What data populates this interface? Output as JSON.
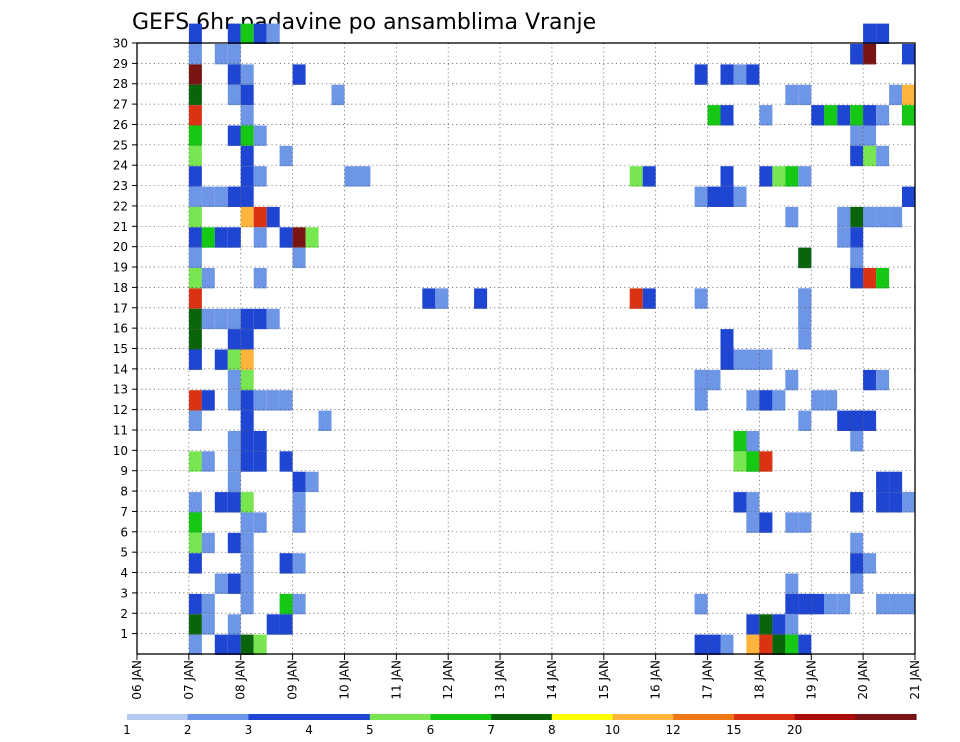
{
  "chart_data": {
    "type": "heatmap",
    "title": "GEFS 6hr padavine po ansamblima Vranje",
    "xlabel": "",
    "ylabel": "",
    "x_range": [
      "06 JAN",
      "21 JAN"
    ],
    "x_tick_labels": [
      "06 JAN",
      "07 JAN",
      "08 JAN",
      "09 JAN",
      "10 JAN",
      "11 JAN",
      "12 JAN",
      "13 JAN",
      "14 JAN",
      "15 JAN",
      "16 JAN",
      "17 JAN",
      "18 JAN",
      "19 JAN",
      "20 JAN",
      "21 JAN"
    ],
    "y_tick_labels": [
      "1",
      "2",
      "3",
      "4",
      "5",
      "6",
      "7",
      "8",
      "9",
      "10",
      "11",
      "12",
      "13",
      "14",
      "15",
      "16",
      "17",
      "18",
      "19",
      "20",
      "21",
      "22",
      "23",
      "24",
      "25",
      "26",
      "27",
      "28",
      "29",
      "30"
    ],
    "y_range": [
      0,
      30
    ],
    "grid": true,
    "grid_style": "dotted",
    "time_step_hours": 6,
    "legend": {
      "placement": "bottom",
      "labels": [
        "1",
        "2",
        "3",
        "4",
        "5",
        "6",
        "7",
        "8",
        "10",
        "12",
        "15",
        "20"
      ],
      "colors": [
        "#b4c8f0",
        "#6e96e6",
        "#1e46d2",
        "#1e46d2",
        "#78e650",
        "#14c814",
        "#0a640a",
        "#ffff00",
        "#ffb43c",
        "#f07814",
        "#dc3214",
        "#aa0a0a",
        "#781414"
      ]
    },
    "cells": [
      [
        30,
        "07 JAN",
        0,
        3
      ],
      [
        30,
        "08 JAN",
        -1,
        3
      ],
      [
        30,
        "08 JAN",
        0,
        5
      ],
      [
        30,
        "08 JAN",
        1,
        2
      ],
      [
        30,
        "08 JAN",
        2,
        1
      ],
      [
        30,
        "20 JAN",
        0,
        3
      ],
      [
        30,
        "20 JAN",
        1,
        2
      ],
      [
        29,
        "07 JAN",
        0,
        1
      ],
      [
        29,
        "08 JAN",
        -1,
        1
      ],
      [
        29,
        "08 JAN",
        -2,
        1
      ],
      [
        29,
        "19 JAN",
        3,
        1
      ],
      [
        29,
        "20 JAN",
        -1,
        3
      ],
      [
        29,
        "20 JAN",
        0,
        12
      ],
      [
        29,
        "21 JAN",
        -1,
        2
      ],
      [
        28,
        "07 JAN",
        0,
        12
      ],
      [
        28,
        "08 JAN",
        -1,
        3
      ],
      [
        28,
        "08 JAN",
        0,
        1
      ],
      [
        28,
        "09 JAN",
        0,
        2
      ],
      [
        28,
        "17 JAN",
        -1,
        2
      ],
      [
        28,
        "17 JAN",
        1,
        3
      ],
      [
        28,
        "18 JAN",
        -2,
        1
      ],
      [
        28,
        "18 JAN",
        -1,
        2
      ],
      [
        27,
        "07 JAN",
        0,
        6
      ],
      [
        27,
        "08 JAN",
        -1,
        1
      ],
      [
        27,
        "08 JAN",
        0,
        2
      ],
      [
        27,
        "10 JAN",
        -1,
        1
      ],
      [
        27,
        "18 JAN",
        2,
        1
      ],
      [
        27,
        "18 JAN",
        3,
        1
      ],
      [
        27,
        "20 JAN",
        2,
        1
      ],
      [
        27,
        "20 JAN",
        3,
        8
      ],
      [
        26,
        "07 JAN",
        0,
        10
      ],
      [
        26,
        "08 JAN",
        0,
        1
      ],
      [
        26,
        "17 JAN",
        0,
        5
      ],
      [
        26,
        "17 JAN",
        1,
        2
      ],
      [
        26,
        "18 JAN",
        0,
        1
      ],
      [
        26,
        "19 JAN",
        0,
        2
      ],
      [
        26,
        "19 JAN",
        1,
        5
      ],
      [
        26,
        "19 JAN",
        2,
        2
      ],
      [
        26,
        "20 JAN",
        -1,
        5
      ],
      [
        26,
        "20 JAN",
        0,
        2
      ],
      [
        26,
        "20 JAN",
        1,
        1
      ],
      [
        26,
        "21 JAN",
        -1,
        5
      ],
      [
        25,
        "07 JAN",
        0,
        5
      ],
      [
        25,
        "08 JAN",
        -1,
        2
      ],
      [
        25,
        "08 JAN",
        0,
        5
      ],
      [
        25,
        "08 JAN",
        1,
        1
      ],
      [
        25,
        "20 JAN",
        -1,
        1
      ],
      [
        25,
        "20 JAN",
        0,
        1
      ],
      [
        24,
        "07 JAN",
        0,
        4
      ],
      [
        24,
        "08 JAN",
        0,
        2
      ],
      [
        24,
        "09 JAN",
        -1,
        1
      ],
      [
        24,
        "20 JAN",
        -1,
        2
      ],
      [
        24,
        "20 JAN",
        0,
        4
      ],
      [
        24,
        "20 JAN",
        1,
        1
      ],
      [
        23,
        "07 JAN",
        0,
        3
      ],
      [
        23,
        "08 JAN",
        0,
        3
      ],
      [
        23,
        "08 JAN",
        1,
        1
      ],
      [
        23,
        "10 JAN",
        0,
        1
      ],
      [
        23,
        "10 JAN",
        1,
        1
      ],
      [
        23,
        "15 JAN",
        2,
        4
      ],
      [
        23,
        "16 JAN",
        -1,
        2
      ],
      [
        23,
        "17 JAN",
        1,
        3
      ],
      [
        23,
        "18 JAN",
        0,
        2
      ],
      [
        23,
        "18 JAN",
        1,
        4
      ],
      [
        23,
        "18 JAN",
        2,
        5
      ],
      [
        23,
        "18 JAN",
        3,
        1
      ],
      [
        22,
        "07 JAN",
        0,
        1
      ],
      [
        22,
        "07 JAN",
        1,
        1
      ],
      [
        22,
        "07 JAN",
        2,
        1
      ],
      [
        22,
        "08 JAN",
        -1,
        3
      ],
      [
        22,
        "08 JAN",
        0,
        2
      ],
      [
        22,
        "17 JAN",
        -1,
        1
      ],
      [
        22,
        "17 JAN",
        0,
        2
      ],
      [
        22,
        "17 JAN",
        1,
        2
      ],
      [
        22,
        "17 JAN",
        2,
        1
      ],
      [
        22,
        "21 JAN",
        -1,
        2
      ],
      [
        21,
        "07 JAN",
        0,
        4
      ],
      [
        21,
        "08 JAN",
        0,
        8
      ],
      [
        21,
        "08 JAN",
        1,
        10
      ],
      [
        21,
        "08 JAN",
        2,
        2
      ],
      [
        21,
        "18 JAN",
        2,
        1
      ],
      [
        21,
        "19 JAN",
        3,
        6
      ],
      [
        21,
        "20 JAN",
        -2,
        1
      ],
      [
        21,
        "20 JAN",
        0,
        1
      ],
      [
        21,
        "20 JAN",
        1,
        1
      ],
      [
        21,
        "20 JAN",
        2,
        1
      ],
      [
        20,
        "07 JAN",
        0,
        2
      ],
      [
        20,
        "07 JAN",
        1,
        5
      ],
      [
        20,
        "07 JAN",
        2,
        2
      ],
      [
        20,
        "08 JAN",
        -1,
        2
      ],
      [
        20,
        "08 JAN",
        1,
        1
      ],
      [
        20,
        "09 JAN",
        -1,
        3
      ],
      [
        20,
        "09 JAN",
        0,
        12
      ],
      [
        20,
        "09 JAN",
        1,
        4
      ],
      [
        20,
        "20 JAN",
        -1,
        2
      ],
      [
        20,
        "20 JAN",
        -2,
        1
      ],
      [
        19,
        "07 JAN",
        0,
        1
      ],
      [
        19,
        "09 JAN",
        0,
        1
      ],
      [
        19,
        "18 JAN",
        3,
        3
      ],
      [
        19,
        "19 JAN",
        -1,
        6
      ],
      [
        19,
        "20 JAN",
        -1,
        1
      ],
      [
        18,
        "07 JAN",
        0,
        4
      ],
      [
        18,
        "07 JAN",
        1,
        1
      ],
      [
        18,
        "08 JAN",
        1,
        1
      ],
      [
        18,
        "20 JAN",
        -1,
        2
      ],
      [
        18,
        "20 JAN",
        0,
        10
      ],
      [
        18,
        "20 JAN",
        1,
        5
      ],
      [
        17,
        "07 JAN",
        0,
        10
      ],
      [
        17,
        "11 JAN",
        3,
        1
      ],
      [
        17,
        "12 JAN",
        -2,
        3
      ],
      [
        17,
        "12 JAN",
        -1,
        1
      ],
      [
        17,
        "12 JAN",
        2,
        2
      ],
      [
        17,
        "15 JAN",
        2,
        10
      ],
      [
        17,
        "16 JAN",
        -1,
        3
      ],
      [
        17,
        "17 JAN",
        -1,
        1
      ],
      [
        17,
        "18 JAN",
        3,
        3
      ],
      [
        17,
        "19 JAN",
        -1,
        1
      ],
      [
        16,
        "07 JAN",
        0,
        6
      ],
      [
        16,
        "07 JAN",
        1,
        1
      ],
      [
        16,
        "07 JAN",
        2,
        1
      ],
      [
        16,
        "08 JAN",
        -1,
        1
      ],
      [
        16,
        "08 JAN",
        0,
        3
      ],
      [
        16,
        "08 JAN",
        1,
        2
      ],
      [
        16,
        "08 JAN",
        2,
        1
      ],
      [
        16,
        "18 JAN",
        3,
        1
      ],
      [
        16,
        "19 JAN",
        -1,
        1
      ],
      [
        15,
        "07 JAN",
        0,
        6
      ],
      [
        15,
        "08 JAN",
        0,
        3
      ],
      [
        15,
        "08 JAN",
        -1,
        3
      ],
      [
        15,
        "17 JAN",
        1,
        2
      ],
      [
        15,
        "18 JAN",
        3,
        1
      ],
      [
        14,
        "07 JAN",
        0,
        3
      ],
      [
        14,
        "07 JAN",
        2,
        2
      ],
      [
        14,
        "08 JAN",
        -1,
        4
      ],
      [
        14,
        "08 JAN",
        0,
        8
      ],
      [
        14,
        "17 JAN",
        1,
        2
      ],
      [
        14,
        "17 JAN",
        2,
        1
      ],
      [
        14,
        "17 JAN",
        3,
        1
      ],
      [
        14,
        "18 JAN",
        -1,
        1
      ],
      [
        14,
        "18 JAN",
        0,
        1
      ],
      [
        13,
        "08 JAN",
        -1,
        1
      ],
      [
        13,
        "08 JAN",
        0,
        4
      ],
      [
        13,
        "16 JAN",
        3,
        2
      ],
      [
        13,
        "17 JAN",
        -1,
        1
      ],
      [
        13,
        "17 JAN",
        0,
        1
      ],
      [
        13,
        "18 JAN",
        2,
        1
      ],
      [
        13,
        "20 JAN",
        0,
        3
      ],
      [
        13,
        "20 JAN",
        1,
        1
      ],
      [
        12,
        "07 JAN",
        0,
        10
      ],
      [
        12,
        "07 JAN",
        1,
        3
      ],
      [
        12,
        "08 JAN",
        -1,
        1
      ],
      [
        12,
        "08 JAN",
        0,
        3
      ],
      [
        12,
        "08 JAN",
        1,
        1
      ],
      [
        12,
        "08 JAN",
        2,
        1
      ],
      [
        12,
        "09 JAN",
        -1,
        1
      ],
      [
        12,
        "17 JAN",
        -1,
        1
      ],
      [
        12,
        "18 JAN",
        -1,
        1
      ],
      [
        12,
        "18 JAN",
        0,
        2
      ],
      [
        12,
        "18 JAN",
        1,
        1
      ],
      [
        12,
        "19 JAN",
        0,
        1
      ],
      [
        12,
        "19 JAN",
        1,
        1
      ],
      [
        11,
        "07 JAN",
        0,
        1
      ],
      [
        11,
        "08 JAN",
        0,
        3
      ],
      [
        11,
        "10 JAN",
        -2,
        1
      ],
      [
        11,
        "18 JAN",
        3,
        1
      ],
      [
        11,
        "19 JAN",
        2,
        3
      ],
      [
        11,
        "19 JAN",
        3,
        15
      ],
      [
        11,
        "20 JAN",
        -1,
        2
      ],
      [
        11,
        "20 JAN",
        0,
        3
      ],
      [
        10,
        "08 JAN",
        -1,
        1
      ],
      [
        10,
        "08 JAN",
        0,
        2
      ],
      [
        10,
        "08 JAN",
        1,
        2
      ],
      [
        10,
        "17 JAN",
        2,
        5
      ],
      [
        10,
        "17 JAN",
        3,
        1
      ],
      [
        10,
        "19 JAN",
        3,
        1
      ],
      [
        9,
        "07 JAN",
        0,
        4
      ],
      [
        9,
        "07 JAN",
        1,
        1
      ],
      [
        9,
        "08 JAN",
        -1,
        1
      ],
      [
        9,
        "08 JAN",
        0,
        2
      ],
      [
        9,
        "08 JAN",
        1,
        2
      ],
      [
        9,
        "09 JAN",
        -1,
        2
      ],
      [
        9,
        "17 JAN",
        3,
        1
      ],
      [
        9,
        "18 JAN",
        -2,
        4
      ],
      [
        9,
        "18 JAN",
        -1,
        5
      ],
      [
        9,
        "18 JAN",
        0,
        10
      ],
      [
        8,
        "08 JAN",
        -1,
        1
      ],
      [
        8,
        "09 JAN",
        0,
        2
      ],
      [
        8,
        "09 JAN",
        1,
        1
      ],
      [
        8,
        "20 JAN",
        1,
        2
      ],
      [
        8,
        "20 JAN",
        2,
        2
      ],
      [
        7,
        "07 JAN",
        0,
        1
      ],
      [
        7,
        "07 JAN",
        2,
        2
      ],
      [
        7,
        "08 JAN",
        -1,
        3
      ],
      [
        7,
        "08 JAN",
        0,
        4
      ],
      [
        7,
        "09 JAN",
        0,
        1
      ],
      [
        7,
        "17 JAN",
        2,
        2
      ],
      [
        7,
        "17 JAN",
        3,
        1
      ],
      [
        7,
        "19 JAN",
        3,
        8
      ],
      [
        7,
        "20 JAN",
        -1,
        2
      ],
      [
        7,
        "20 JAN",
        1,
        2
      ],
      [
        7,
        "20 JAN",
        2,
        2
      ],
      [
        7,
        "20 JAN",
        3,
        10
      ],
      [
        7,
        "21 JAN",
        -1,
        1
      ],
      [
        6,
        "07 JAN",
        0,
        5
      ],
      [
        6,
        "08 JAN",
        0,
        1
      ],
      [
        6,
        "08 JAN",
        1,
        1
      ],
      [
        6,
        "09 JAN",
        0,
        1
      ],
      [
        6,
        "17 JAN",
        3,
        1
      ],
      [
        6,
        "18 JAN",
        -1,
        1
      ],
      [
        6,
        "18 JAN",
        0,
        3
      ],
      [
        6,
        "18 JAN",
        2,
        1
      ],
      [
        6,
        "19 JAN",
        -1,
        1
      ],
      [
        5,
        "07 JAN",
        0,
        4
      ],
      [
        5,
        "07 JAN",
        1,
        1
      ],
      [
        5,
        "08 JAN",
        -1,
        3
      ],
      [
        5,
        "08 JAN",
        0,
        1
      ],
      [
        5,
        "19 JAN",
        3,
        1
      ],
      [
        4,
        "07 JAN",
        0,
        3
      ],
      [
        4,
        "08 JAN",
        0,
        1
      ],
      [
        4,
        "09 JAN",
        -1,
        3
      ],
      [
        4,
        "09 JAN",
        0,
        1
      ],
      [
        4,
        "20 JAN",
        -1,
        3
      ],
      [
        4,
        "20 JAN",
        0,
        1
      ],
      [
        3,
        "08 JAN",
        -2,
        1
      ],
      [
        3,
        "08 JAN",
        -1,
        2
      ],
      [
        3,
        "08 JAN",
        0,
        1
      ],
      [
        3,
        "18 JAN",
        2,
        1
      ],
      [
        3,
        "19 JAN",
        3,
        1
      ],
      [
        2,
        "07 JAN",
        0,
        3
      ],
      [
        2,
        "07 JAN",
        1,
        1
      ],
      [
        2,
        "08 JAN",
        0,
        1
      ],
      [
        2,
        "09 JAN",
        -1,
        5
      ],
      [
        2,
        "09 JAN",
        0,
        1
      ],
      [
        2,
        "16 JAN",
        3,
        1
      ],
      [
        2,
        "17 JAN",
        -1,
        1
      ],
      [
        2,
        "18 JAN",
        2,
        3
      ],
      [
        2,
        "18 JAN",
        3,
        2
      ],
      [
        2,
        "19 JAN",
        -1,
        3
      ],
      [
        2,
        "19 JAN",
        0,
        3
      ],
      [
        2,
        "19 JAN",
        1,
        1
      ],
      [
        2,
        "19 JAN",
        2,
        1
      ],
      [
        2,
        "20 JAN",
        1,
        1
      ],
      [
        2,
        "20 JAN",
        2,
        1
      ],
      [
        2,
        "20 JAN",
        3,
        1
      ],
      [
        1,
        "07 JAN",
        0,
        6
      ],
      [
        1,
        "07 JAN",
        1,
        1
      ],
      [
        1,
        "08 JAN",
        -1,
        1
      ],
      [
        1,
        "09 JAN",
        -2,
        2
      ],
      [
        1,
        "09 JAN",
        -1,
        2
      ],
      [
        1,
        "18 JAN",
        -1,
        3
      ],
      [
        1,
        "18 JAN",
        0,
        6
      ],
      [
        1,
        "18 JAN",
        1,
        2
      ],
      [
        1,
        "18 JAN",
        2,
        1
      ],
      [
        0,
        "07 JAN",
        0,
        1
      ],
      [
        0,
        "08 JAN",
        -2,
        2
      ],
      [
        0,
        "08 JAN",
        -1,
        2
      ],
      [
        0,
        "08 JAN",
        0,
        6
      ],
      [
        0,
        "08 JAN",
        1,
        4
      ],
      [
        0,
        "17 JAN",
        -1,
        2
      ],
      [
        0,
        "17 JAN",
        0,
        3
      ],
      [
        0,
        "17 JAN",
        1,
        1
      ],
      [
        0,
        "18 JAN",
        -1,
        8
      ],
      [
        0,
        "18 JAN",
        0,
        10
      ],
      [
        0,
        "18 JAN",
        1,
        6
      ],
      [
        0,
        "18 JAN",
        2,
        5
      ],
      [
        0,
        "18 JAN",
        3,
        2
      ]
    ]
  }
}
